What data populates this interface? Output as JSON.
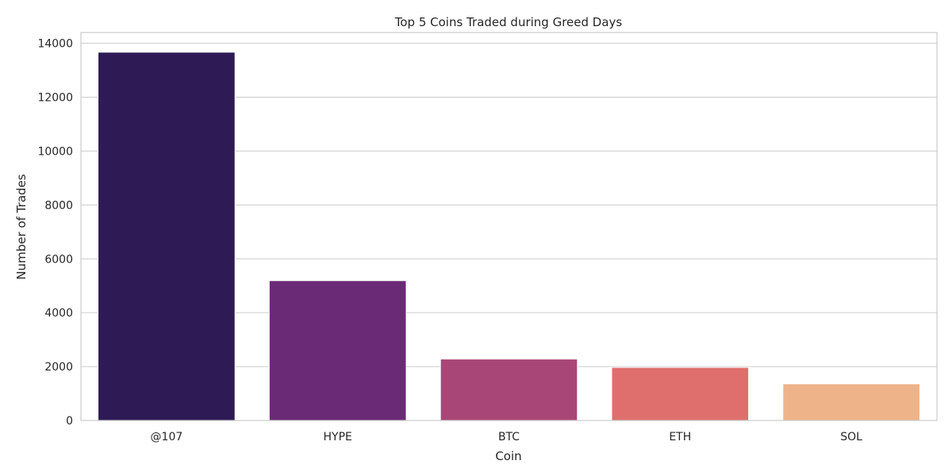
{
  "chart_data": {
    "type": "bar",
    "title": "Top 5 Coins Traded during Greed Days",
    "xlabel": "Coin",
    "ylabel": "Number of Trades",
    "categories": [
      "@107",
      "HYPE",
      "BTC",
      "ETH",
      "SOL"
    ],
    "values": [
      13670,
      5190,
      2280,
      1970,
      1360
    ],
    "colors": [
      "#2e1a55",
      "#6b2a75",
      "#a84777",
      "#de6f6d",
      "#eeb389"
    ],
    "ylim": [
      0,
      14400
    ],
    "yticks": [
      0,
      2000,
      4000,
      6000,
      8000,
      10000,
      12000,
      14000
    ],
    "grid": true,
    "grid_axis": "y",
    "legend": "none"
  }
}
